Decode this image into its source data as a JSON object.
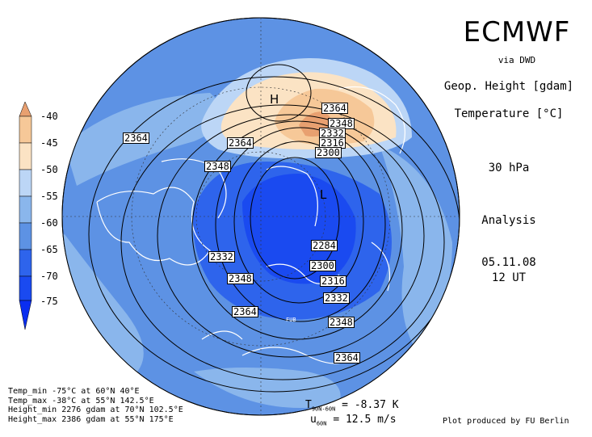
{
  "header": {
    "model": "ECMWF",
    "source": "via DWD"
  },
  "info": {
    "variable1": "Geop. Height [gdam]",
    "variable2": "Temperature [°C]",
    "level": "30 hPa",
    "run_type": "Analysis",
    "date": "05.11.08",
    "time": "12 UT"
  },
  "colorbar": {
    "labels": [
      "-40",
      "-45",
      "-50",
      "-55",
      "-60",
      "-65",
      "-70",
      "-75"
    ],
    "colors": [
      "#e8a070",
      "#f6c898",
      "#fbe3c4",
      "#bcd6f6",
      "#8ab6ec",
      "#5d92e4",
      "#2e64ec",
      "#0a2ef0"
    ]
  },
  "map": {
    "ocean_color": "#5d92e4",
    "coast_color": "#ffffff",
    "contour_color": "#000000",
    "pressure_centers": [
      {
        "label": "H"
      },
      {
        "label": "L"
      }
    ],
    "contour_labels": [
      "2364",
      "2364",
      "2348",
      "2364",
      "2348",
      "2332",
      "2316",
      "2300",
      "2284",
      "2300",
      "2332",
      "2348",
      "2316",
      "2332",
      "2364",
      "2348",
      "2364"
    ],
    "station_label": "FUB"
  },
  "footer": {
    "temp_min": "Temp_min -75°C at 60°N 40°E",
    "temp_max": "Temp_max -38°C at 55°N 142.5°E",
    "height_min": "Height_min 2276 gdam at 70°N 102.5°E",
    "height_max": "Height_max 2386 gdam at 55°N 175°E"
  },
  "stats": {
    "t_label": "T",
    "t_sub": "90N-60N",
    "t_value": "= -8.37 K",
    "u_label": "u",
    "u_sub": "60N",
    "u_value": "= 12.5 m/s"
  },
  "credit": "Plot produced by FU Berlin"
}
